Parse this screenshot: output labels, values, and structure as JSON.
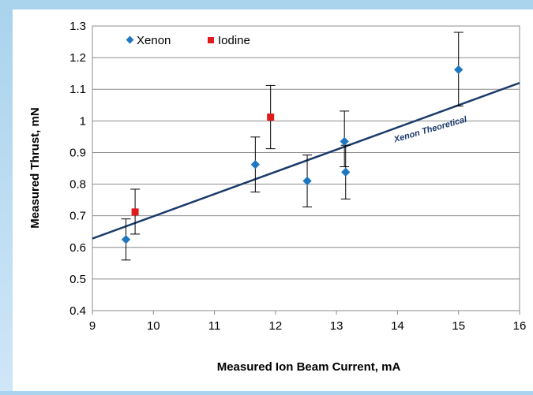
{
  "chart_data": {
    "type": "scatter",
    "xlabel": "Measured Ion Beam Current, mA",
    "ylabel": "Measured Thrust, mN",
    "xlim": [
      9,
      16
    ],
    "ylim": [
      0.4,
      1.3
    ],
    "xticks": [
      9,
      10,
      11,
      12,
      13,
      14,
      15,
      16
    ],
    "yticks": [
      0.4,
      0.5,
      0.6,
      0.7,
      0.8,
      0.9,
      1,
      1.1,
      1.2,
      1.3
    ],
    "ytick_labels": [
      "0.4",
      "0.5",
      "0.6",
      "0.7",
      "0.8",
      "0.9",
      "1",
      "1.1",
      "1.2",
      "1.3"
    ],
    "grid": "horizontal",
    "legend_position": "top-left",
    "series": [
      {
        "name": "Xenon",
        "marker": "diamond",
        "color": "#1f77c0",
        "points": [
          {
            "x": 9.55,
            "y": 0.625,
            "err_low": 0.065,
            "err_high": 0.065
          },
          {
            "x": 11.67,
            "y": 0.862,
            "err_low": 0.087,
            "err_high": 0.087
          },
          {
            "x": 12.52,
            "y": 0.81,
            "err_low": 0.082,
            "err_high": 0.082
          },
          {
            "x": 13.13,
            "y": 0.935,
            "err_low": 0.08,
            "err_high": 0.096
          },
          {
            "x": 13.15,
            "y": 0.838,
            "err_low": 0.085,
            "err_high": 0.085
          },
          {
            "x": 15.0,
            "y": 1.162,
            "err_low": 0.115,
            "err_high": 0.118
          }
        ]
      },
      {
        "name": "Iodine",
        "marker": "square",
        "color": "#e31a1c",
        "points": [
          {
            "x": 9.7,
            "y": 0.712,
            "err_low": 0.07,
            "err_high": 0.072
          },
          {
            "x": 11.92,
            "y": 1.012,
            "err_low": 0.1,
            "err_high": 0.1
          }
        ]
      }
    ],
    "lines": [
      {
        "name": "Xenon Theoretical",
        "color": "#1b3a6b",
        "x": [
          9,
          16
        ],
        "y": [
          0.628,
          1.12
        ]
      }
    ],
    "annotations": [
      {
        "text": "Xenon Theoretical",
        "x": 14.55,
        "y": 0.965,
        "angle_deg": -16
      }
    ]
  }
}
